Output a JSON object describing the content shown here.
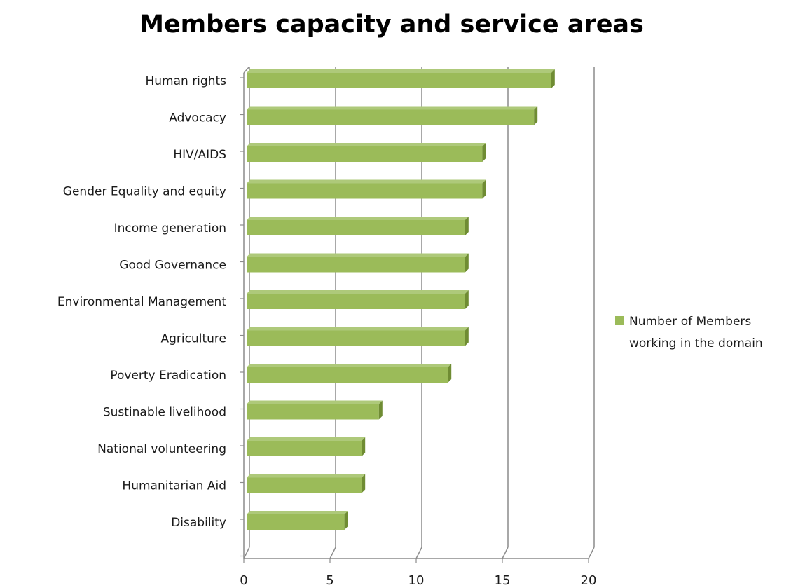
{
  "chart_data": {
    "type": "bar",
    "orientation": "horizontal",
    "title": "Members capacity and service areas",
    "categories": [
      "Human rights",
      "Advocacy",
      "HIV/AIDS",
      "Gender Equality and equity",
      "Income generation",
      "Good Governance",
      "Environmental Management",
      "Agriculture",
      "Poverty Eradication",
      "Sustinable livelihood",
      "National volunteering",
      "Humanitarian Aid",
      "Disability"
    ],
    "series": [
      {
        "name": "Number of Members working in the domain",
        "name_lines": [
          "Number of Members",
          "working in the domain"
        ],
        "values": [
          18,
          17,
          14,
          14,
          13,
          13,
          13,
          13,
          12,
          8,
          7,
          7,
          6
        ],
        "color": "#9bbb59"
      }
    ],
    "xlim": [
      0,
      20
    ],
    "xticks": [
      0,
      5,
      10,
      15,
      20
    ],
    "grid": true,
    "legend": "right"
  }
}
